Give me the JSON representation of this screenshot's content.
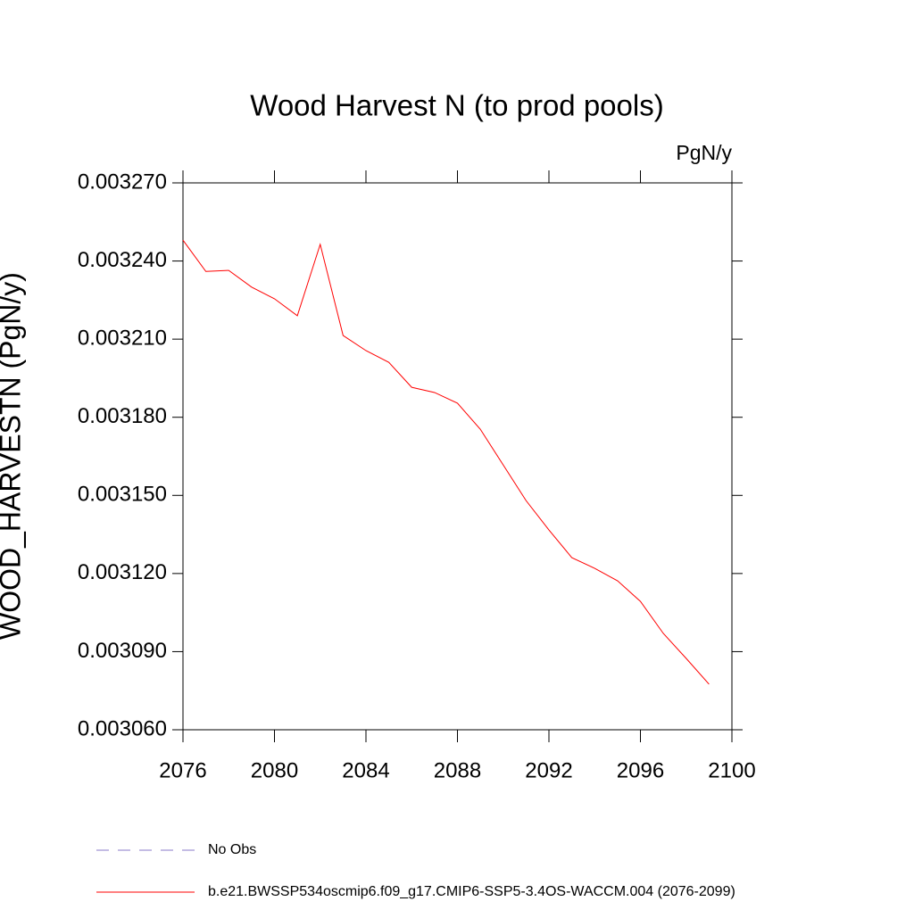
{
  "chart_data": {
    "type": "line",
    "title": "Wood Harvest N (to prod pools)",
    "units": "PgN/y",
    "ylabel": "WOOD_HARVESTN  (PgN/y)",
    "x": [
      2076,
      2077,
      2078,
      2079,
      2080,
      2081,
      2082,
      2083,
      2084,
      2085,
      2086,
      2087,
      2088,
      2089,
      2090,
      2091,
      2092,
      2093,
      2094,
      2095,
      2096,
      2097,
      2098,
      2099
    ],
    "series": [
      {
        "name": "b.e21.BWSSP534oscmip6.f09_g17.CMIP6-SSP5-3.4OS-WACCM.004 (2076-2099)",
        "color": "#ff0000",
        "values": [
          0.003248,
          0.003236,
          0.0032364,
          0.00323,
          0.0032255,
          0.003219,
          0.0032464,
          0.0032114,
          0.0032056,
          0.0032011,
          0.0031915,
          0.0031895,
          0.0031854,
          0.0031754,
          0.0031617,
          0.003148,
          0.0031367,
          0.0031261,
          0.003122,
          0.0031172,
          0.0031093,
          0.003097,
          0.0030874,
          0.0030775
        ]
      }
    ],
    "legend": [
      {
        "label": "No Obs",
        "color": "#8878c8",
        "dashed": true
      }
    ],
    "xlim": [
      2076,
      2100
    ],
    "xticks": [
      2076,
      2080,
      2084,
      2088,
      2092,
      2096,
      2100
    ],
    "ylim": [
      0.00306,
      0.00327
    ],
    "yticks": [
      {
        "value": 0.00306,
        "label": "0.003060"
      },
      {
        "value": 0.00309,
        "label": "0.003090"
      },
      {
        "value": 0.00312,
        "label": "0.003120"
      },
      {
        "value": 0.00315,
        "label": "0.003150"
      },
      {
        "value": 0.00318,
        "label": "0.003180"
      },
      {
        "value": 0.00321,
        "label": "0.003210"
      },
      {
        "value": 0.00324,
        "label": "0.003240"
      },
      {
        "value": 0.00327,
        "label": "0.003270"
      }
    ]
  }
}
